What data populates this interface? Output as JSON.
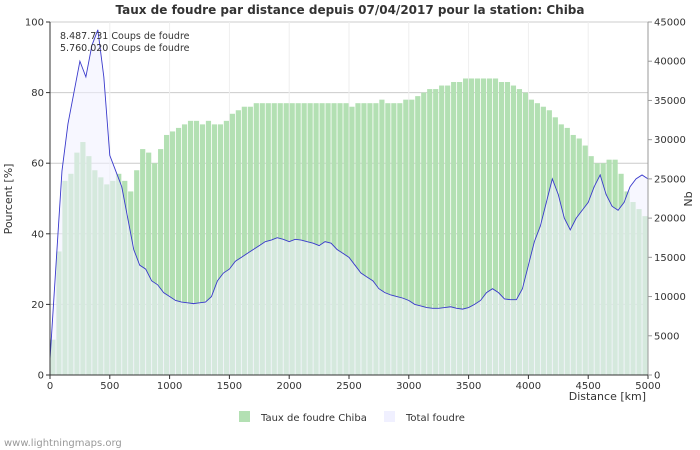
{
  "chart_data": {
    "type": "bar",
    "title": "Taux de foudre par distance depuis 07/04/2017 pour la station: Chiba",
    "xlabel": "Distance   [km]",
    "ylabel_left": "Pourcent   [%]",
    "ylabel_right": "Nb",
    "xlim": [
      0,
      5000
    ],
    "ylim_left": [
      0,
      100
    ],
    "ylim_right": [
      0,
      45000
    ],
    "x_ticks": [
      0,
      500,
      1000,
      1500,
      2000,
      2500,
      3000,
      3500,
      4000,
      4500,
      5000
    ],
    "y_ticks_left": [
      0,
      20,
      40,
      60,
      80,
      100
    ],
    "y_ticks_right": [
      0,
      5000,
      10000,
      15000,
      20000,
      25000,
      30000,
      35000,
      40000,
      45000
    ],
    "grid": true,
    "annotations": [
      "8.487.731  Coups de foudre",
      "5.760.020  Coups de foudre"
    ],
    "series": [
      {
        "name": "Taux de foudre Chiba",
        "axis": "left",
        "color": "#b3e0b3",
        "kind": "bar",
        "x": [
          0,
          50,
          100,
          150,
          200,
          250,
          300,
          350,
          400,
          450,
          500,
          550,
          600,
          650,
          700,
          750,
          800,
          850,
          900,
          950,
          1000,
          1050,
          1100,
          1150,
          1200,
          1250,
          1300,
          1350,
          1400,
          1450,
          1500,
          1550,
          1600,
          1650,
          1700,
          1750,
          1800,
          1850,
          1900,
          1950,
          2000,
          2050,
          2100,
          2150,
          2200,
          2250,
          2300,
          2350,
          2400,
          2450,
          2500,
          2550,
          2600,
          2650,
          2700,
          2750,
          2800,
          2850,
          2900,
          2950,
          3000,
          3050,
          3100,
          3150,
          3200,
          3250,
          3300,
          3350,
          3400,
          3450,
          3500,
          3550,
          3600,
          3650,
          3700,
          3750,
          3800,
          3850,
          3900,
          3950,
          4000,
          4050,
          4100,
          4150,
          4200,
          4250,
          4300,
          4350,
          4400,
          4450,
          4500,
          4550,
          4600,
          4650,
          4700,
          4750,
          4800,
          4850,
          4900,
          4950
        ],
        "values": [
          10,
          35,
          55,
          57,
          63,
          66,
          62,
          58,
          56,
          54,
          55,
          57,
          55,
          52,
          58,
          64,
          63,
          60,
          64,
          68,
          69,
          70,
          71,
          72,
          72,
          71,
          72,
          71,
          71,
          72,
          74,
          75,
          76,
          76,
          77,
          77,
          77,
          77,
          77,
          77,
          77,
          77,
          77,
          77,
          77,
          77,
          77,
          77,
          77,
          77,
          76,
          77,
          77,
          77,
          77,
          78,
          77,
          77,
          77,
          78,
          78,
          79,
          80,
          81,
          81,
          82,
          82,
          83,
          83,
          84,
          84,
          84,
          84,
          84,
          84,
          83,
          83,
          82,
          81,
          80,
          78,
          77,
          76,
          75,
          73,
          71,
          70,
          68,
          67,
          65,
          62,
          60,
          60,
          61,
          61,
          57,
          52,
          49,
          47,
          45
        ]
      },
      {
        "name": "Total foudre",
        "axis": "right",
        "color": "#f0f0ff",
        "line_color": "#3a3acc",
        "kind": "area",
        "x": [
          0,
          50,
          100,
          150,
          200,
          250,
          300,
          350,
          400,
          450,
          500,
          550,
          600,
          650,
          700,
          750,
          800,
          850,
          900,
          950,
          1000,
          1050,
          1100,
          1150,
          1200,
          1250,
          1300,
          1350,
          1400,
          1450,
          1500,
          1550,
          1600,
          1650,
          1700,
          1750,
          1800,
          1850,
          1900,
          1950,
          2000,
          2050,
          2100,
          2150,
          2200,
          2250,
          2300,
          2350,
          2400,
          2450,
          2500,
          2550,
          2600,
          2650,
          2700,
          2750,
          2800,
          2850,
          2900,
          2950,
          3000,
          3050,
          3100,
          3150,
          3200,
          3250,
          3300,
          3350,
          3400,
          3450,
          3500,
          3550,
          3600,
          3650,
          3700,
          3750,
          3800,
          3850,
          3900,
          3950,
          4000,
          4050,
          4100,
          4150,
          4200,
          4250,
          4300,
          4350,
          4400,
          4450,
          4500,
          4550,
          4600,
          4650,
          4700,
          4750,
          4800,
          4850,
          4900,
          4950,
          5000
        ],
        "values": [
          2000,
          14000,
          26000,
          32000,
          36000,
          40000,
          38000,
          42000,
          44000,
          38000,
          28000,
          26000,
          24000,
          20000,
          16000,
          14000,
          13500,
          12000,
          11500,
          10500,
          10000,
          9500,
          9300,
          9200,
          9100,
          9200,
          9300,
          10000,
          12000,
          13000,
          13500,
          14500,
          15000,
          15500,
          16000,
          16500,
          17000,
          17200,
          17500,
          17300,
          17000,
          17300,
          17200,
          17000,
          16800,
          16500,
          17000,
          16800,
          16000,
          15500,
          15000,
          14000,
          13000,
          12500,
          12000,
          11000,
          10500,
          10200,
          10000,
          9800,
          9500,
          9000,
          8800,
          8600,
          8500,
          8500,
          8600,
          8700,
          8500,
          8400,
          8600,
          9000,
          9500,
          10500,
          11000,
          10500,
          9700,
          9600,
          9600,
          11000,
          14000,
          17000,
          19000,
          22000,
          25000,
          23000,
          20000,
          18500,
          20000,
          21000,
          22000,
          24000,
          25500,
          23000,
          21500,
          21000,
          22000,
          24000,
          25000,
          25500,
          25000
        ]
      }
    ]
  },
  "source_text": "www.lightningmaps.org"
}
